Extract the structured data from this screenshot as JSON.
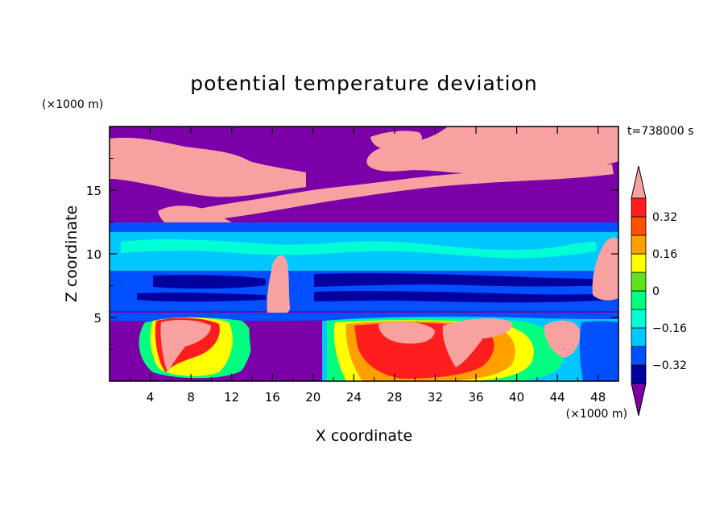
{
  "chart_data": {
    "type": "heatmap",
    "title": "potential temperature deviation",
    "xlabel": "X coordinate",
    "ylabel": "Z coordinate",
    "x_unit": "(×1000 m)",
    "y_unit": "(×1000 m)",
    "time_label": "t=738000 s",
    "xlim": [
      0,
      50
    ],
    "ylim": [
      0,
      20
    ],
    "x_ticks": [
      "4",
      "8",
      "12",
      "16",
      "20",
      "24",
      "28",
      "32",
      "36",
      "40",
      "44",
      "48"
    ],
    "y_ticks": [
      "5",
      "10",
      "15"
    ],
    "colorbar": {
      "labels": [
        "0.32",
        "0.16",
        "0",
        "−0.16",
        "−0.32"
      ],
      "levels": [
        -0.4,
        -0.32,
        -0.24,
        -0.16,
        -0.08,
        0,
        0.08,
        0.16,
        0.24,
        0.32,
        0.4
      ],
      "colors": [
        "#7b00a8",
        "#00009e",
        "#0050ff",
        "#00c8ff",
        "#00ffd4",
        "#00ff80",
        "#5fe31c",
        "#ffff00",
        "#ffa000",
        "#ff5000",
        "#ff1e1e",
        "#f7a1a1"
      ],
      "extend": "both"
    },
    "layers": [
      {
        "z_range": [
          0,
          5.3
        ],
        "pattern": "turbulent mix, mostly purple/cyan/green with warm (yellow–red–pink) plumes between x=4–10 and x=21–46"
      },
      {
        "z_range": [
          5.3,
          6.2
        ],
        "pattern": "blue"
      },
      {
        "z_range": [
          6.2,
          8.8
        ],
        "pattern": "dark-blue / blue banded"
      },
      {
        "z_range": [
          8.8,
          11.7
        ],
        "pattern": "cyan"
      },
      {
        "z_range": [
          11.7,
          12.6
        ],
        "pattern": "blue"
      },
      {
        "z_range": [
          12.6,
          14.5
        ],
        "pattern": "purple"
      },
      {
        "z_range": [
          14.5,
          20
        ],
        "pattern": "purple with pink filament rising from x=5 to x=46 and pink cap in the upper-left"
      }
    ]
  }
}
